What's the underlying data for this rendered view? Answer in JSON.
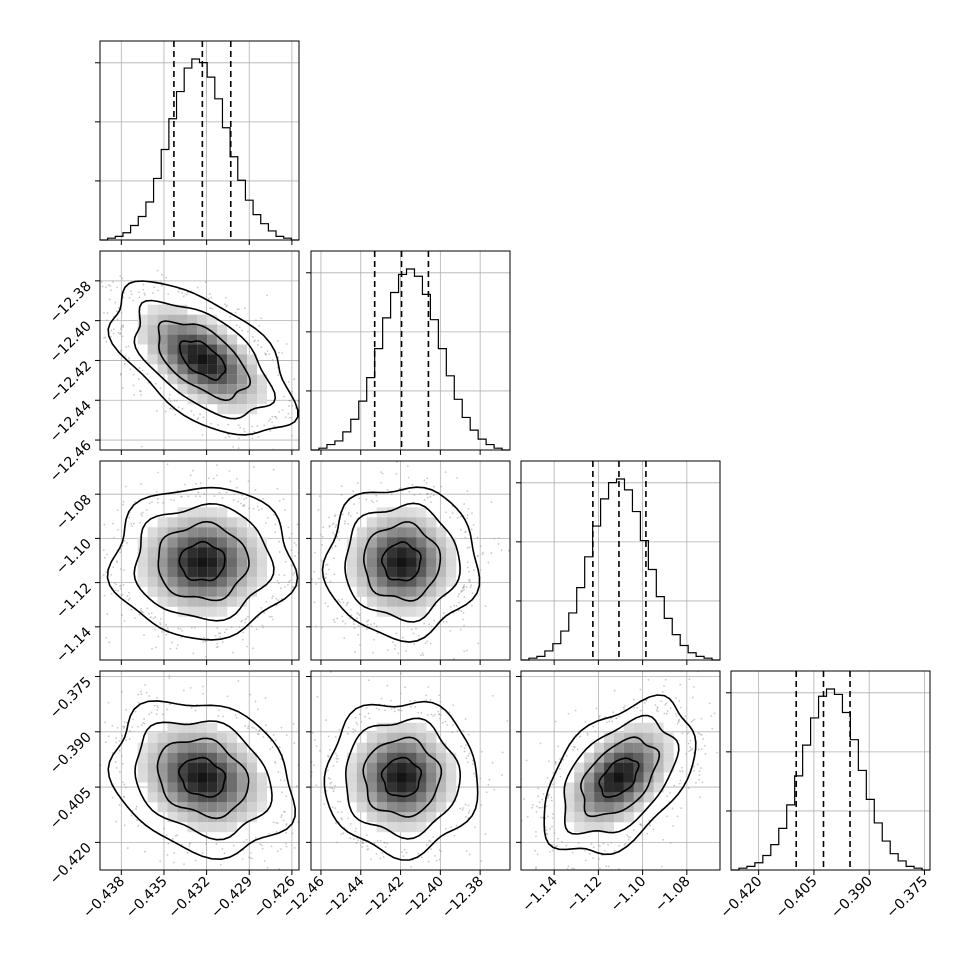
{
  "chart_data": {
    "type": "corner",
    "title": "",
    "parameters": [
      {
        "range": [
          -0.4395,
          -0.4255
        ],
        "ticks": [
          "-0.438",
          "-0.435",
          "-0.432",
          "-0.429",
          "-0.426"
        ],
        "tick_values": [
          -0.438,
          -0.435,
          -0.432,
          -0.429,
          -0.426
        ],
        "quantiles": [
          -0.4343,
          -0.4323,
          -0.4303
        ],
        "hist_counts": [
          0,
          0.01,
          0.02,
          0.04,
          0.08,
          0.13,
          0.21,
          0.34,
          0.5,
          0.67,
          0.82,
          0.95,
          1,
          0.98,
          0.9,
          0.78,
          0.62,
          0.46,
          0.33,
          0.22,
          0.14,
          0.09,
          0.05,
          0.02,
          0.01,
          0
        ]
      },
      {
        "range": [
          -12.465,
          -12.365
        ],
        "ticks": [
          "-12.46",
          "-12.44",
          "-12.42",
          "-12.40",
          "-12.38"
        ],
        "tick_values": [
          -12.46,
          -12.44,
          -12.42,
          -12.4,
          -12.38
        ],
        "quantiles": [
          -12.433,
          -12.4195,
          -12.406
        ],
        "hist_counts": [
          0,
          0.01,
          0.03,
          0.05,
          0.1,
          0.17,
          0.27,
          0.4,
          0.56,
          0.73,
          0.87,
          0.97,
          1,
          0.96,
          0.86,
          0.72,
          0.56,
          0.41,
          0.28,
          0.18,
          0.11,
          0.06,
          0.03,
          0.01,
          0
        ]
      },
      {
        "range": [
          -1.155,
          -1.065
        ],
        "ticks": [
          "-1.14",
          "-1.12",
          "-1.10",
          "-1.08"
        ],
        "tick_values": [
          -1.14,
          -1.12,
          -1.1,
          -1.08
        ],
        "quantiles": [
          -1.1225,
          -1.1107,
          -1.0985
        ],
        "hist_counts": [
          0,
          0.01,
          0.02,
          0.05,
          0.09,
          0.16,
          0.26,
          0.4,
          0.57,
          0.74,
          0.89,
          0.98,
          1,
          0.94,
          0.82,
          0.66,
          0.5,
          0.35,
          0.23,
          0.14,
          0.08,
          0.04,
          0.02,
          0.01,
          0
        ]
      },
      {
        "range": [
          -0.4275,
          -0.3735
        ],
        "ticks": [
          "-0.420",
          "-0.405",
          "-0.390",
          "-0.375"
        ],
        "tick_values": [
          -0.42,
          -0.405,
          -0.39,
          -0.375
        ],
        "quantiles": [
          -0.4098,
          -0.4024,
          -0.3952
        ],
        "hist_counts": [
          0,
          0.01,
          0.02,
          0.04,
          0.08,
          0.14,
          0.23,
          0.36,
          0.52,
          0.69,
          0.84,
          0.96,
          1,
          0.97,
          0.87,
          0.72,
          0.55,
          0.39,
          0.26,
          0.16,
          0.09,
          0.05,
          0.02,
          0.01,
          0
        ]
      }
    ],
    "pairs": [
      {
        "x": 0,
        "y": 1,
        "mean": [
          -0.4323,
          -12.4195
        ],
        "sd": [
          0.0022,
          0.0132
        ],
        "rho": -0.55
      },
      {
        "x": 0,
        "y": 2,
        "mean": [
          -0.4323,
          -1.1107
        ],
        "sd": [
          0.0022,
          0.0118
        ],
        "rho": 0.0
      },
      {
        "x": 1,
        "y": 2,
        "mean": [
          -12.4195,
          -1.1107
        ],
        "sd": [
          0.0132,
          0.0118
        ],
        "rho": 0.0
      },
      {
        "x": 0,
        "y": 3,
        "mean": [
          -0.4323,
          -0.4024
        ],
        "sd": [
          0.0022,
          0.0072
        ],
        "rho": -0.2
      },
      {
        "x": 1,
        "y": 3,
        "mean": [
          -12.4195,
          -0.4024
        ],
        "sd": [
          0.0132,
          0.0072
        ],
        "rho": 0.0
      },
      {
        "x": 2,
        "y": 3,
        "mean": [
          -1.1107,
          -0.4024
        ],
        "sd": [
          0.0118,
          0.0072
        ],
        "rho": 0.45
      }
    ],
    "contour_levels_sigma": [
      0.5,
      1.0,
      1.5,
      2.0
    ],
    "grid": true,
    "colors": {
      "line": "#000000",
      "grid": "#b0b0b0",
      "points": "#9a9a9a"
    }
  }
}
